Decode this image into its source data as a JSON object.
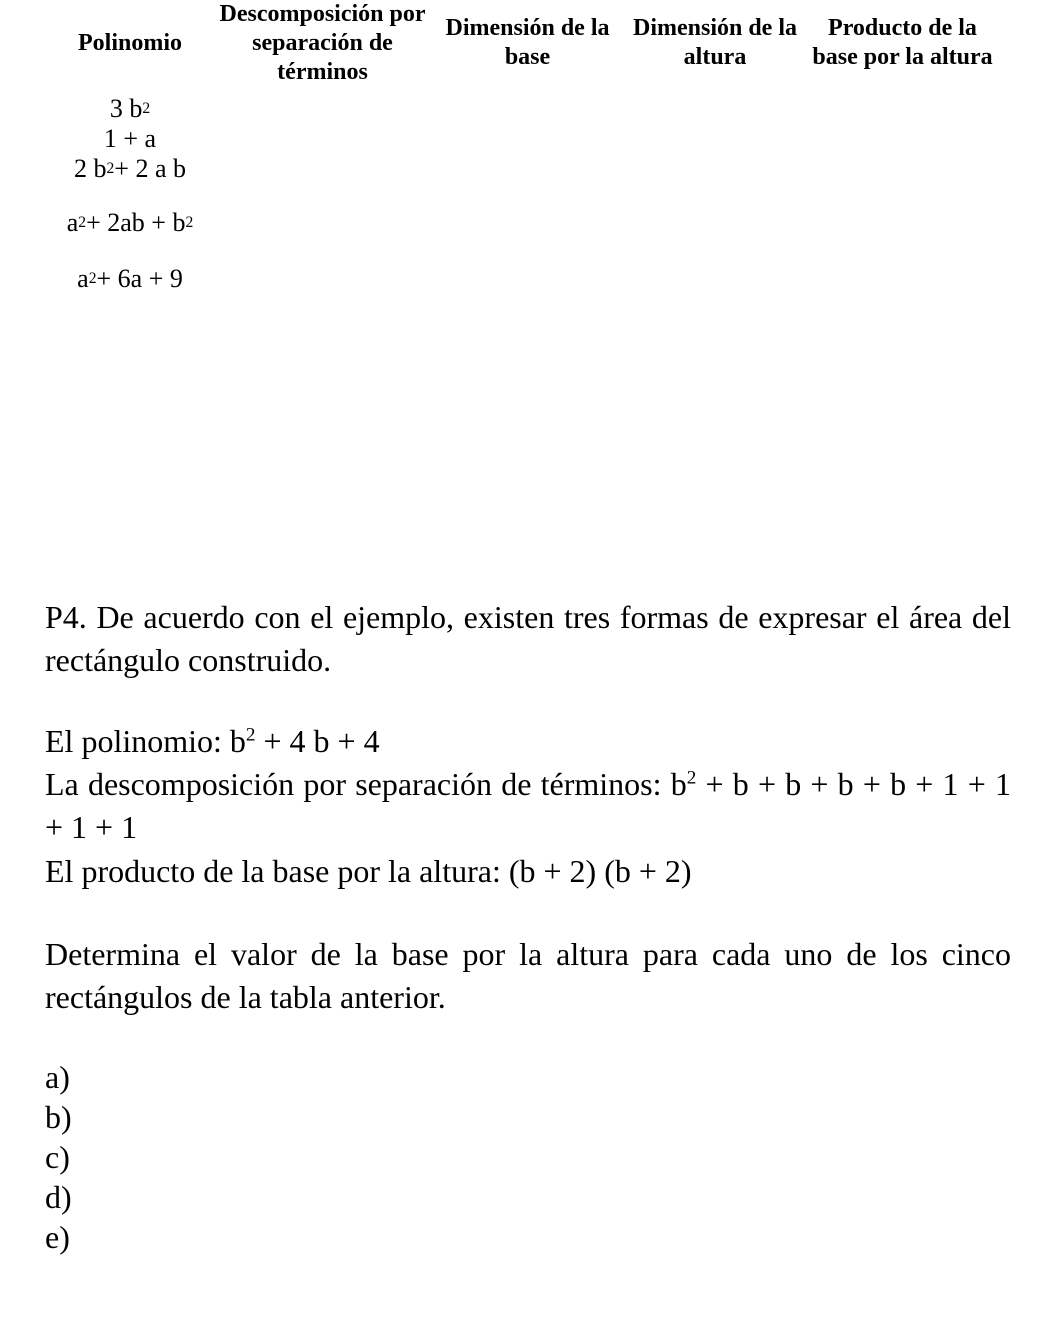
{
  "table": {
    "headers": {
      "col1": "Polinomio",
      "col2": "Descomposición por separación de términos",
      "col3": "Dimensión de la base",
      "col4": "Dimensión de la altura",
      "col5": "Producto de la base por la altura"
    },
    "rows": [
      {
        "polynomial": "3 b²"
      },
      {
        "polynomial": "1 + a"
      },
      {
        "polynomial": "2 b² + 2 a b"
      },
      {
        "polynomial": "a² + 2ab + b²"
      },
      {
        "polynomial": "a² + 6a + 9"
      }
    ]
  },
  "content": {
    "p1": "P4. De acuerdo con el ejemplo, existen tres formas de expresar el área del rectángulo construido.",
    "p2": "El polinomio: b² + 4 b + 4",
    "p3": "La descomposición por separación de términos: b² + b + b + b + b + 1 + 1 + 1 + 1",
    "p4": "El producto de la base por la altura: (b + 2) (b + 2)",
    "p5": "Determina el valor de la base por la altura para cada uno de los cinco rectángulos de la tabla anterior.",
    "answers": [
      "a)",
      "b)",
      "c)",
      "d)",
      "e)"
    ]
  },
  "styles": {
    "background": "#ffffff",
    "text_color": "#000000",
    "font_family": "Times New Roman",
    "header_fontsize": 24,
    "row_fontsize": 26,
    "body_fontsize": 32
  }
}
